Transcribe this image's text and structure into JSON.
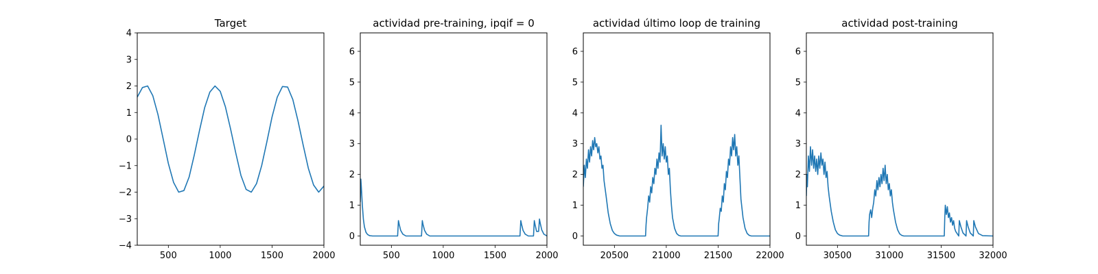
{
  "chart_data": [
    {
      "type": "line",
      "title": "Target",
      "xlim": [
        200,
        2000
      ],
      "ylim": [
        -4,
        4
      ],
      "xticks": [
        500,
        1000,
        1500,
        2000
      ],
      "yticks": [
        -4,
        -3,
        -2,
        -1,
        0,
        1,
        2,
        3,
        4
      ],
      "xtick_labels": [
        "500",
        "1000",
        "1500",
        "2000"
      ],
      "ytick_labels": [
        "−4",
        "−3",
        "−2",
        "−1",
        "0",
        "1",
        "2",
        "3",
        "4"
      ],
      "color": "#1f77b4",
      "series": [
        {
          "x": [
            200,
            250,
            300,
            350,
            400,
            450,
            500,
            550,
            600,
            650,
            700,
            750,
            800,
            850,
            900,
            950,
            1000,
            1050,
            1100,
            1150,
            1200,
            1250,
            1300,
            1350,
            1400,
            1450,
            1500,
            1550,
            1600,
            1650,
            1700,
            1750,
            1800,
            1850,
            1900,
            1950,
            2000
          ],
          "y": [
            1.58,
            1.94,
            2.0,
            1.63,
            0.92,
            0.0,
            -0.92,
            -1.63,
            -2.0,
            -1.94,
            -1.43,
            -0.6,
            0.32,
            1.18,
            1.77,
            2.0,
            1.8,
            1.22,
            0.38,
            -0.53,
            -1.37,
            -1.9,
            -2.0,
            -1.68,
            -1.0,
            -0.1,
            0.83,
            1.58,
            1.98,
            1.96,
            1.49,
            0.69,
            -0.23,
            -1.1,
            -1.73,
            -2.0,
            -1.77
          ]
        }
      ]
    },
    {
      "type": "line",
      "title": "actividad pre-training, ipqif = 0",
      "xlim": [
        200,
        2000
      ],
      "ylim": [
        -0.3,
        6.6
      ],
      "xticks": [
        500,
        1000,
        1500,
        2000
      ],
      "yticks": [
        0,
        1,
        2,
        3,
        4,
        5,
        6
      ],
      "xtick_labels": [
        "500",
        "1000",
        "1500",
        "2000"
      ],
      "ytick_labels": [
        "0",
        "1",
        "2",
        "3",
        "4",
        "5",
        "6"
      ],
      "color": "#1f77b4",
      "series": [
        {
          "x": [
            200,
            205,
            210,
            220,
            230,
            240,
            255,
            270,
            290,
            320,
            560,
            568,
            575,
            590,
            610,
            640,
            790,
            798,
            805,
            820,
            840,
            870,
            1740,
            1748,
            1755,
            1770,
            1790,
            1820,
            1870,
            1878,
            1885,
            1900,
            1920,
            1928,
            1935,
            1950,
            1970,
            2000
          ],
          "y": [
            1.1,
            1.85,
            1.6,
            1.0,
            0.55,
            0.3,
            0.12,
            0.05,
            0.01,
            0.0,
            0.0,
            0.5,
            0.38,
            0.18,
            0.06,
            0.0,
            0.0,
            0.5,
            0.38,
            0.18,
            0.06,
            0.0,
            0.0,
            0.5,
            0.38,
            0.18,
            0.06,
            0.0,
            0.0,
            0.5,
            0.38,
            0.15,
            0.15,
            0.55,
            0.42,
            0.2,
            0.06,
            0.0
          ]
        }
      ]
    },
    {
      "type": "line",
      "title": "actividad último loop de training",
      "xlim": [
        20200,
        22000
      ],
      "ylim": [
        -0.3,
        6.6
      ],
      "xticks": [
        20500,
        21000,
        21500,
        22000
      ],
      "yticks": [
        0,
        1,
        2,
        3,
        4,
        5,
        6
      ],
      "xtick_labels": [
        "20500",
        "21000",
        "21500",
        "22000"
      ],
      "ytick_labels": [
        "0",
        "1",
        "2",
        "3",
        "4",
        "5",
        "6"
      ],
      "color": "#1f77b4",
      "series": [
        {
          "x": [
            20200,
            20210,
            20220,
            20230,
            20240,
            20250,
            20260,
            20270,
            20280,
            20290,
            20300,
            20310,
            20320,
            20330,
            20340,
            20350,
            20360,
            20370,
            20380,
            20390,
            20400,
            20420,
            20440,
            20460,
            20480,
            20500,
            20520,
            20550,
            20800,
            20805,
            20810,
            20820,
            20830,
            20840,
            20850,
            20860,
            20870,
            20880,
            20890,
            20900,
            20910,
            20920,
            20930,
            20940,
            20950,
            20960,
            20970,
            20980,
            20990,
            21000,
            21010,
            21020,
            21030,
            21040,
            21050,
            21060,
            21080,
            21100,
            21120,
            21140,
            21160,
            21500,
            21505,
            21510,
            21520,
            21530,
            21540,
            21550,
            21560,
            21570,
            21580,
            21590,
            21600,
            21610,
            21620,
            21630,
            21640,
            21650,
            21660,
            21670,
            21680,
            21690,
            21700,
            21710,
            21720,
            21740,
            21760,
            21780,
            21800,
            21820,
            22000
          ],
          "y": [
            1.6,
            2.3,
            1.9,
            2.5,
            2.2,
            2.8,
            2.4,
            2.9,
            2.6,
            3.1,
            2.8,
            3.2,
            2.9,
            3.0,
            2.7,
            2.9,
            2.5,
            2.6,
            2.2,
            2.3,
            1.8,
            1.3,
            0.75,
            0.4,
            0.18,
            0.08,
            0.03,
            0.0,
            0.0,
            0.35,
            0.6,
            0.9,
            1.3,
            1.1,
            1.6,
            1.4,
            1.9,
            1.7,
            2.2,
            2.0,
            2.5,
            2.2,
            2.7,
            2.4,
            3.6,
            2.6,
            3.0,
            2.5,
            2.9,
            2.4,
            2.6,
            2.0,
            2.2,
            1.5,
            1.0,
            0.6,
            0.25,
            0.08,
            0.02,
            0.0,
            0.0,
            0.0,
            0.4,
            0.55,
            0.9,
            0.8,
            1.3,
            1.1,
            1.7,
            1.5,
            2.1,
            1.9,
            2.5,
            2.3,
            2.9,
            2.6,
            3.2,
            2.8,
            3.3,
            2.6,
            2.9,
            2.3,
            2.6,
            1.9,
            1.2,
            0.6,
            0.25,
            0.08,
            0.02,
            0.0,
            0.0
          ]
        }
      ]
    },
    {
      "type": "line",
      "title": "actividad post-training",
      "xlim": [
        30200,
        32000
      ],
      "ylim": [
        -0.3,
        6.6
      ],
      "xticks": [
        30500,
        31000,
        31500,
        32000
      ],
      "yticks": [
        0,
        1,
        2,
        3,
        4,
        5,
        6
      ],
      "xtick_labels": [
        "30500",
        "31000",
        "31500",
        "32000"
      ],
      "ytick_labels": [
        "0",
        "1",
        "2",
        "3",
        "4",
        "5",
        "6"
      ],
      "color": "#1f77b4",
      "series": [
        {
          "x": [
            30200,
            30205,
            30210,
            30220,
            30230,
            30240,
            30250,
            30260,
            30270,
            30280,
            30290,
            30300,
            30310,
            30320,
            30330,
            30340,
            30350,
            30360,
            30370,
            30380,
            30390,
            30400,
            30410,
            30420,
            30440,
            30460,
            30480,
            30500,
            30520,
            30550,
            30800,
            30805,
            30810,
            30820,
            30830,
            30840,
            30850,
            30860,
            30870,
            30880,
            30890,
            30900,
            30910,
            30920,
            30930,
            30940,
            30950,
            30960,
            30970,
            30980,
            30990,
            31000,
            31010,
            31020,
            31030,
            31040,
            31060,
            31080,
            31100,
            31120,
            31140,
            31530,
            31535,
            31540,
            31550,
            31560,
            31570,
            31580,
            31590,
            31600,
            31610,
            31620,
            31630,
            31640,
            31660,
            31670,
            31675,
            31690,
            31710,
            31740,
            31745,
            31760,
            31780,
            31810,
            31815,
            31830,
            31860,
            31900,
            32000
          ],
          "y": [
            1.3,
            2.0,
            1.6,
            2.6,
            2.1,
            2.9,
            2.3,
            2.8,
            2.2,
            2.6,
            2.1,
            2.5,
            2.0,
            2.6,
            2.2,
            2.7,
            2.3,
            2.5,
            2.0,
            2.4,
            1.9,
            2.1,
            1.6,
            1.3,
            0.8,
            0.45,
            0.2,
            0.08,
            0.03,
            0.0,
            0.0,
            0.45,
            0.7,
            0.85,
            0.6,
            0.9,
            1.1,
            1.5,
            1.3,
            1.8,
            1.5,
            1.9,
            1.6,
            2.0,
            1.7,
            2.2,
            1.8,
            2.3,
            1.7,
            2.0,
            1.5,
            1.7,
            1.3,
            1.5,
            1.1,
            0.85,
            0.45,
            0.2,
            0.07,
            0.02,
            0.0,
            0.0,
            0.6,
            1.0,
            0.7,
            0.95,
            0.6,
            0.75,
            0.45,
            0.6,
            0.35,
            0.5,
            0.25,
            0.15,
            0.05,
            0.0,
            0.5,
            0.3,
            0.1,
            0.0,
            0.5,
            0.3,
            0.1,
            0.0,
            0.5,
            0.3,
            0.08,
            0.01,
            0.0
          ]
        }
      ]
    }
  ]
}
